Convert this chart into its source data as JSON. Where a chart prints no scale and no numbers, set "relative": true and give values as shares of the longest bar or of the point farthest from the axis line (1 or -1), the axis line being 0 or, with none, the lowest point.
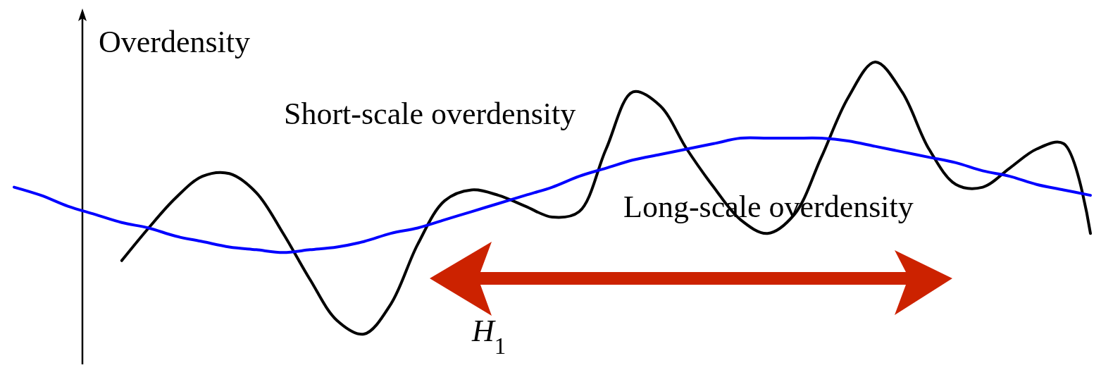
{
  "chart_data": {
    "type": "line",
    "relative": true,
    "ylabel": "Overdensity",
    "legend": false,
    "annotations": [
      "H$_{1}$"
    ],
    "categories": [
      null,
      null,
      null,
      null,
      null,
      null,
      null,
      null,
      null,
      null,
      null,
      null,
      null,
      null,
      null,
      null,
      null,
      null,
      null,
      null,
      null,
      null,
      null,
      null,
      null,
      null,
      null,
      null,
      null,
      null,
      null,
      null,
      null,
      null,
      null,
      null,
      null,
      null,
      null,
      null,
      null
    ],
    "series": [
      {
        "name": "Short-scale overdensity",
        "color": "#000000",
        "values": [
          null,
          null,
          null,
          null,
          0.27,
          0.39,
          0.5,
          0.58,
          0.59,
          0.52,
          0.37,
          0.2,
          0.05,
          0,
          0.11,
          0.33,
          0.49,
          0.53,
          0.51,
          0.47,
          0.43,
          0.45,
          0.68,
          0.89,
          0.84,
          0.68,
          0.54,
          0.42,
          0.37,
          0.44,
          0.65,
          0.87,
          1,
          0.89,
          0.68,
          0.55,
          0.54,
          0.61,
          0.68,
          0.7,
          0.37
        ]
      },
      {
        "name": "Long-scale overdensity",
        "color": "#0000ff",
        "values": [
          0.54,
          0.51,
          0.47,
          0.44,
          0.41,
          0.39,
          0.36,
          0.34,
          0.32,
          0.31,
          0.3,
          0.31,
          0.32,
          0.34,
          0.37,
          0.39,
          0.42,
          0.45,
          0.48,
          0.51,
          0.54,
          0.58,
          0.61,
          0.64,
          0.66,
          0.68,
          0.7,
          0.72,
          0.72,
          0.72,
          0.72,
          0.71,
          0.69,
          0.67,
          0.65,
          0.63,
          0.6,
          0.58,
          0.55,
          0.53,
          0.51
        ]
      }
    ]
  }
}
